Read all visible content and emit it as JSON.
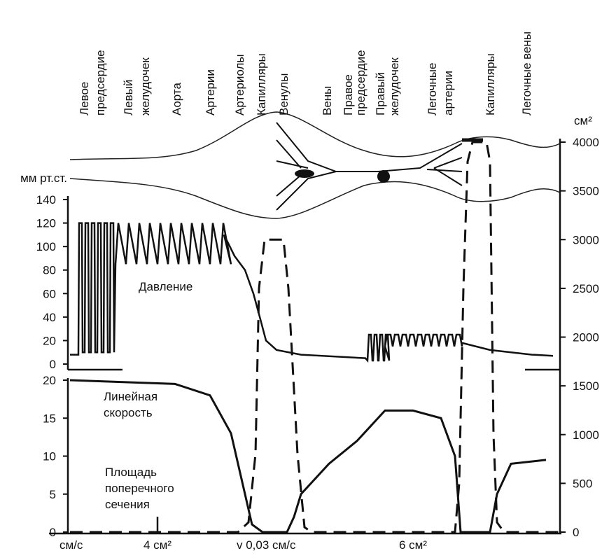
{
  "vessels": [
    [
      "Левое",
      "предсердие"
    ],
    [
      "Левый",
      "желудочек"
    ],
    [
      "Аорта"
    ],
    [
      "Артерии"
    ],
    [
      "Артериолы"
    ],
    [
      "Капилляры"
    ],
    [
      "Венулы"
    ],
    [
      "Вены"
    ],
    [
      "Правое",
      "предсердие"
    ],
    [
      "Правый",
      "желудочек"
    ],
    [
      "Легочные",
      "артерии"
    ],
    [
      "Капилляры"
    ],
    [
      "Легочные вены"
    ]
  ],
  "pressure_axis": {
    "unit": "мм рт.ст.",
    "ticks": [
      0,
      20,
      40,
      60,
      80,
      100,
      120,
      140
    ]
  },
  "velocity_axis": {
    "ticks": [
      0,
      5,
      10,
      15,
      20
    ]
  },
  "area_axis": {
    "unit": "см²",
    "ticks": [
      0,
      500,
      1000,
      1500,
      2000,
      2500,
      3000,
      3500,
      4000
    ]
  },
  "labels": {
    "pressure": "Давление",
    "velocity": [
      "Линейная",
      "скорость"
    ],
    "area": [
      "Площадь",
      "поперечного",
      "сечения"
    ]
  },
  "bottom_labels": [
    "см/с",
    "4 см²",
    "v 0,03 см/с",
    "6 см²"
  ]
}
